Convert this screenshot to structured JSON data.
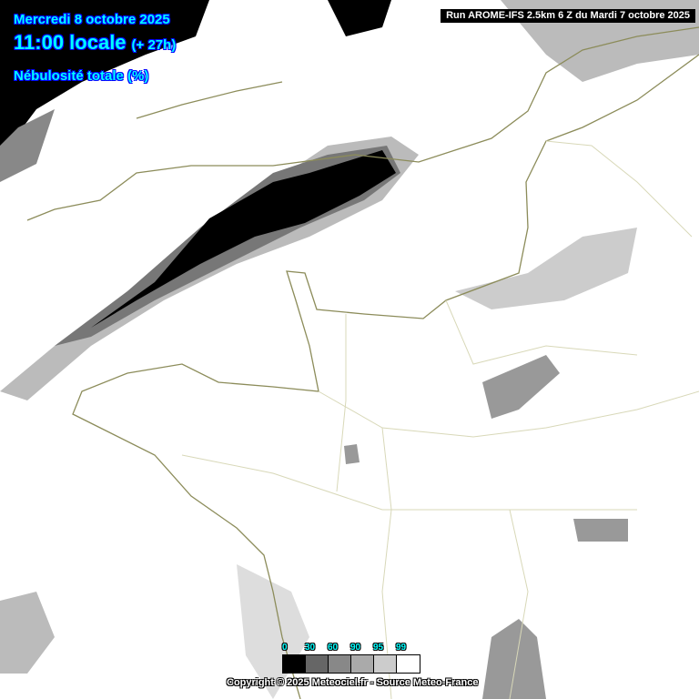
{
  "header": {
    "date": "Mercredi 8 octobre 2025",
    "time": "11:00 locale",
    "offset": "(+ 27h)",
    "parameter": "Nébulosité totale (%)"
  },
  "run_label": "Run AROME-IFS 2.5km 6 Z du Mardi 7 octobre 2025",
  "legend": {
    "ticks": [
      "0",
      "30",
      "60",
      "90",
      "95",
      "99"
    ],
    "colors": [
      "#000000",
      "#666666",
      "#888888",
      "#aaaaaa",
      "#cccccc",
      "#ffffff"
    ]
  },
  "copyright": "Copyright © 2025 Meteociel.fr - Source Meteo-France",
  "colors": {
    "coastline": "#8c8c5a",
    "borders": "#d8d8b8",
    "header_text": "#00ffff"
  }
}
